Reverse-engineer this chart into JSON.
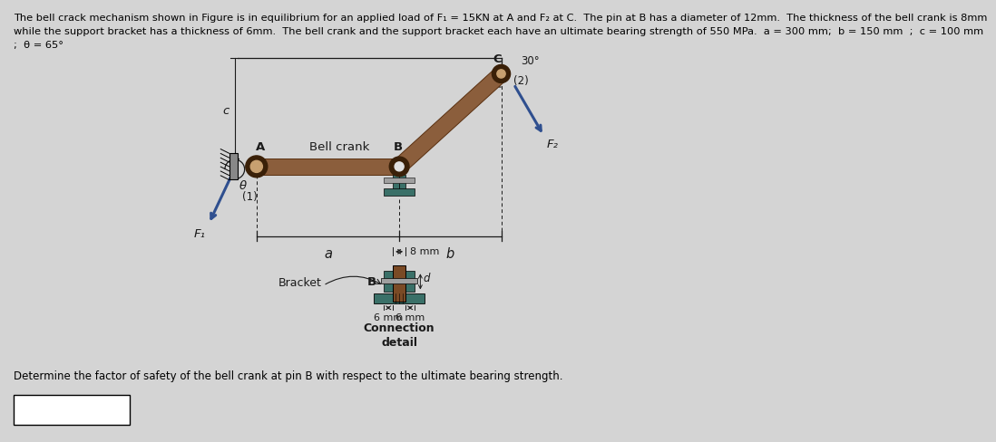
{
  "bg_color": "#d4d4d4",
  "title_line1": "The bell crack mechanism shown in Figure is in equilibrium for an applied load of F₁ = 15KN at A and F₂ at C.  The pin at B has a diameter of 12mm.  The thickness of the bell crank is 8mm",
  "title_line2": "while the support bracket has a thickness of 6mm.  The bell crank and the support bracket each have an ultimate bearing strength of 550 MPa.  a = 300 mm;  b = 150 mm  ;  c = 100 mm",
  "title_line3": ";  θ = 65°",
  "question_text": "Determine the factor of safety of the bell crank at pin B with respect to the ultimate bearing strength.",
  "label_bell_crank": "Bell crank",
  "label_bracket": "Bracket",
  "label_connection_line1": "Connection",
  "label_connection_line2": "detail",
  "label_A": "A",
  "label_B": "B",
  "label_B2": "B",
  "label_C": "C",
  "label_c": "c",
  "label_a": "a",
  "label_b": "b",
  "label_d": "d",
  "label_theta": "θ",
  "label_F1": "F₁",
  "label_F2": "F₂",
  "label_1": "(1)",
  "label_2": "(2)",
  "label_8mm": "8 mm",
  "label_6mm_left": "6 mm",
  "label_6mm_right": "6 mm",
  "label_30deg": "30°",
  "bar_color": "#8B5E3C",
  "bar_edge": "#5a3010",
  "bracket_color": "#3a7068",
  "bracket_dark": "#2a5048",
  "pin_color": "#909090",
  "dark_color": "#1a1a1a",
  "arrow_color": "#2F4F8F",
  "wall_color": "#808080",
  "title_fontsize": 8.2,
  "label_fontsize": 9.5,
  "small_fontsize": 8.5
}
